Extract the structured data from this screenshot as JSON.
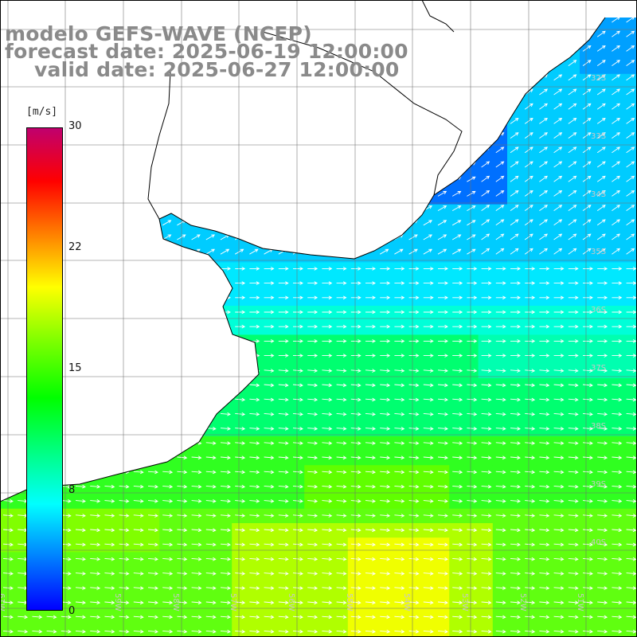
{
  "title": {
    "line1": "modelo GEFS-WAVE (NCEP)",
    "line2": "forecast date: 2025-06-19 12:00:00",
    "line3": "valid date: 2025-06-27 12:00:00"
  },
  "colorbar": {
    "unit": "[m/s]",
    "ticks": [
      "30",
      "22",
      "15",
      "8",
      "0"
    ],
    "colors": [
      "#0000ff",
      "#0080ff",
      "#00ffff",
      "#00ff80",
      "#00ff00",
      "#80ff00",
      "#ffff00",
      "#ff8000",
      "#ff0000",
      "#c0006e"
    ]
  },
  "map": {
    "land_color": "#ffffff",
    "coast_color": "#000000",
    "grid_color": "#707070",
    "lat_labels": [
      "32S",
      "33S",
      "34S",
      "35S",
      "36S",
      "37S",
      "38S",
      "39S",
      "40S"
    ],
    "lon_labels": [
      "61W",
      "60W",
      "59W",
      "58W",
      "57W",
      "56W",
      "55W",
      "54W",
      "53W",
      "52W",
      "51W"
    ],
    "field_note_colors": [
      "#00a0ff",
      "#00e0ff",
      "#00ff90",
      "#40ff00",
      "#c0ff00",
      "#ffff00"
    ]
  }
}
